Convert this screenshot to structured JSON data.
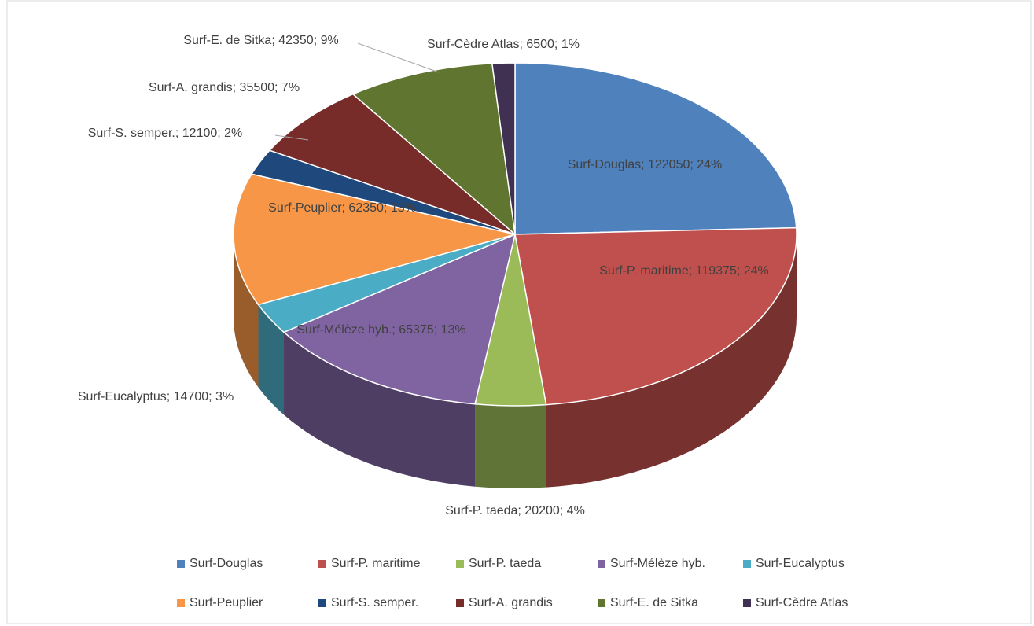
{
  "chart_data": {
    "type": "pie3d",
    "categories": [
      "Surf-Douglas",
      "Surf-P. maritime",
      "Surf-P. taeda",
      "Surf-Mélèze hyb.",
      "Surf-Eucalyptus",
      "Surf-Peuplier",
      "Surf-S. semper.",
      "Surf-A. grandis",
      "Surf-E. de Sitka",
      "Surf-Cèdre Atlas"
    ],
    "values": [
      122050,
      119375,
      20200,
      65375,
      14700,
      62350,
      12100,
      35500,
      42350,
      6500
    ],
    "value_labels": [
      "Surf-Douglas; 122050; 24%",
      "Surf-P. maritime; 119375; 24%",
      "Surf-P. taeda; 20200; 4%",
      "Surf-Mélèze hyb.; 65375; 13%",
      "Surf-Eucalyptus; 14700; 3%",
      "Surf-Peuplier; 62350; 13%",
      "Surf-S. semper.; 12100; 2%",
      "Surf-A. grandis; 35500; 7%",
      "Surf-E. de Sitka; 42350; 9%",
      "Surf-Cèdre Atlas; 6500; 1%"
    ],
    "colors": [
      "#4f81bd",
      "#c0504d",
      "#9bbb59",
      "#8064a2",
      "#4bacc6",
      "#f79646",
      "#1f497d",
      "#772c2a",
      "#5f7530",
      "#403152"
    ],
    "legend": "bottom"
  }
}
